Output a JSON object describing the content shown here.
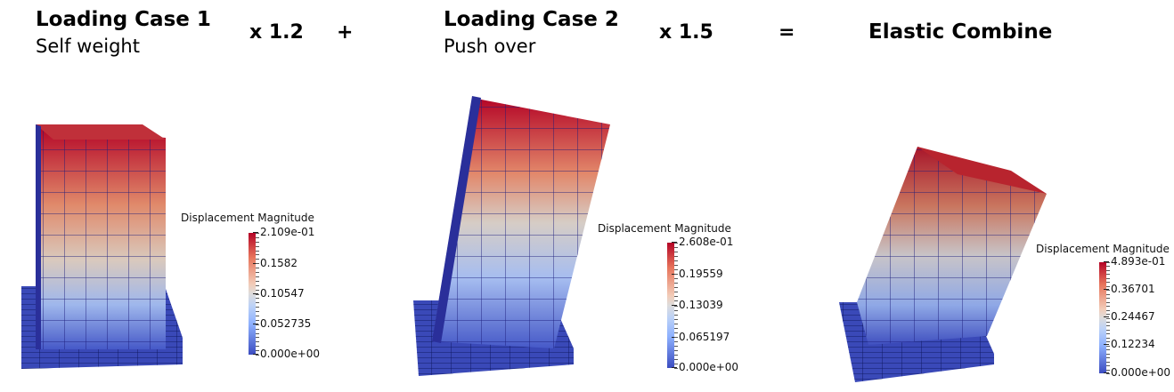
{
  "headers": [
    {
      "title": "Loading Case 1",
      "subtitle": "Self weight"
    },
    {
      "title": "Loading Case 2",
      "subtitle": "Push over"
    },
    {
      "title": "Elastic Combine",
      "subtitle": ""
    }
  ],
  "operators": {
    "factor1": "x 1.2",
    "plus": "+",
    "factor2": "x 1.5",
    "equals": "="
  },
  "legends": [
    {
      "title": "Displacement Magnitude",
      "ticks": [
        "2.109e-01",
        "0.1582",
        "0.10547",
        "0.052735",
        "0.000e+00"
      ]
    },
    {
      "title": "Displacement Magnitude",
      "ticks": [
        "2.608e-01",
        "0.19559",
        "0.13039",
        "0.065197",
        "0.000e+00"
      ]
    },
    {
      "title": "Displacement Magnitude",
      "ticks": [
        "4.893e-01",
        "0.36701",
        "0.24467",
        "0.12234",
        "0.000e+00"
      ]
    }
  ],
  "colormap": {
    "high": "#b40426",
    "mid": "#dddcdc",
    "low": "#3b4cc0",
    "edge": "#1a1a7a"
  }
}
